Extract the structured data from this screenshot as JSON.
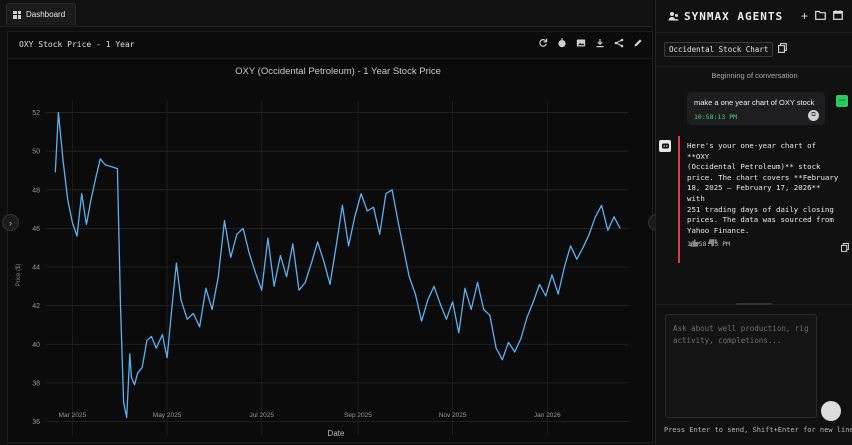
{
  "tabs": {
    "dashboard_label": "Dashboard"
  },
  "card": {
    "title": "OXY Stock Price - 1 Year",
    "toolbar_icons": [
      "refresh-icon",
      "timer-icon",
      "image-icon",
      "download-icon",
      "share-icon",
      "edit-icon"
    ]
  },
  "chart_data": {
    "type": "line",
    "title": "OXY (Occidental Petroleum) - 1 Year Stock Price",
    "xlabel": "Date",
    "ylabel": "Price ($)",
    "ylim": [
      35.3,
      52.6
    ],
    "yticks": [
      36,
      38,
      40,
      42,
      44,
      46,
      48,
      50,
      52
    ],
    "xticks": [
      {
        "date": "2025-03-01",
        "label": "Mar 2025"
      },
      {
        "date": "2025-05-01",
        "label": "May 2025"
      },
      {
        "date": "2025-07-01",
        "label": "Jul 2025"
      },
      {
        "date": "2025-09-01",
        "label": "Sep 2025"
      },
      {
        "date": "2025-11-01",
        "label": "Nov 2025"
      },
      {
        "date": "2026-01-01",
        "label": "Jan 2026"
      }
    ],
    "grid": true,
    "line_color": "#5fb0f0",
    "series": [
      {
        "x": [
          "2025-02-18",
          "2025-02-20",
          "2025-02-23",
          "2025-02-26",
          "2025-03-01",
          "2025-03-04",
          "2025-03-07",
          "2025-03-10",
          "2025-03-13",
          "2025-03-16",
          "2025-03-19",
          "2025-03-22",
          "2025-03-26",
          "2025-03-30",
          "2025-04-01",
          "2025-04-03",
          "2025-04-05",
          "2025-04-07",
          "2025-04-08",
          "2025-04-10",
          "2025-04-12",
          "2025-04-15",
          "2025-04-18",
          "2025-04-21",
          "2025-04-24",
          "2025-04-28",
          "2025-05-01",
          "2025-05-04",
          "2025-05-07",
          "2025-05-10",
          "2025-05-14",
          "2025-05-18",
          "2025-05-22",
          "2025-05-26",
          "2025-05-30",
          "2025-06-03",
          "2025-06-07",
          "2025-06-11",
          "2025-06-15",
          "2025-06-19",
          "2025-06-23",
          "2025-06-27",
          "2025-07-01",
          "2025-07-05",
          "2025-07-09",
          "2025-07-13",
          "2025-07-17",
          "2025-07-21",
          "2025-07-25",
          "2025-07-29",
          "2025-08-02",
          "2025-08-06",
          "2025-08-10",
          "2025-08-14",
          "2025-08-18",
          "2025-08-22",
          "2025-08-26",
          "2025-08-30",
          "2025-09-03",
          "2025-09-07",
          "2025-09-11",
          "2025-09-15",
          "2025-09-19",
          "2025-09-23",
          "2025-09-27",
          "2025-10-01",
          "2025-10-04",
          "2025-10-08",
          "2025-10-12",
          "2025-10-16",
          "2025-10-20",
          "2025-10-24",
          "2025-10-28",
          "2025-11-01",
          "2025-11-05",
          "2025-11-09",
          "2025-11-13",
          "2025-11-17",
          "2025-11-21",
          "2025-11-25",
          "2025-11-29",
          "2025-12-03",
          "2025-12-07",
          "2025-12-11",
          "2025-12-15",
          "2025-12-19",
          "2025-12-23",
          "2025-12-27",
          "2025-12-31",
          "2026-01-04",
          "2026-01-08",
          "2026-01-12",
          "2026-01-16",
          "2026-01-20",
          "2026-01-24",
          "2026-01-28",
          "2026-02-01",
          "2026-02-05",
          "2026-02-09",
          "2026-02-13",
          "2026-02-17"
        ],
        "y": [
          48.9,
          52.0,
          49.5,
          47.5,
          46.3,
          45.6,
          47.8,
          46.2,
          47.5,
          48.6,
          49.6,
          49.3,
          49.2,
          49.1,
          42.0,
          37.0,
          36.2,
          39.5,
          38.3,
          37.9,
          38.5,
          38.8,
          40.2,
          40.4,
          39.8,
          40.5,
          39.3,
          41.8,
          44.2,
          42.3,
          41.3,
          41.6,
          40.9,
          42.9,
          41.8,
          43.5,
          46.4,
          44.5,
          45.7,
          46.0,
          44.7,
          43.7,
          42.8,
          45.5,
          43.0,
          44.6,
          43.5,
          45.2,
          42.8,
          43.2,
          44.2,
          45.3,
          44.3,
          43.1,
          45.1,
          47.2,
          45.1,
          46.6,
          47.8,
          46.9,
          47.1,
          45.7,
          47.8,
          48.0,
          46.3,
          44.7,
          43.5,
          42.6,
          41.2,
          42.3,
          43.0,
          42.1,
          41.3,
          42.2,
          40.6,
          42.9,
          41.8,
          43.2,
          41.8,
          41.5,
          39.8,
          39.2,
          40.1,
          39.6,
          40.3,
          41.4,
          42.2,
          43.1,
          42.5,
          43.6,
          42.6,
          44.0,
          45.1,
          44.4,
          45.0,
          45.7,
          46.6,
          47.2,
          45.9,
          46.6,
          46.0
        ]
      }
    ]
  },
  "agent": {
    "title": "SYNMAX AGENTS",
    "conversation_name": "Occidental Stock Chart",
    "beginning_label": "Beginning of conversation",
    "user_message": {
      "text": "make a one year chart of OXY stock",
      "time": "10:58:13 PM"
    },
    "bot_message": {
      "text": "Here's your one-year chart of **OXY\n(Occidental Petroleum)** stock\nprice. The chart covers **February\n18, 2025 – February 17, 2026** with\n251 trading days of daily closing\nprices. The data was sourced from\nYahoo Finance.",
      "time": "10:58:13 PM"
    },
    "input_placeholder": "Ask about well production, rig activity, completions...",
    "hint": "Press Enter to send, Shift+Enter for new line"
  }
}
